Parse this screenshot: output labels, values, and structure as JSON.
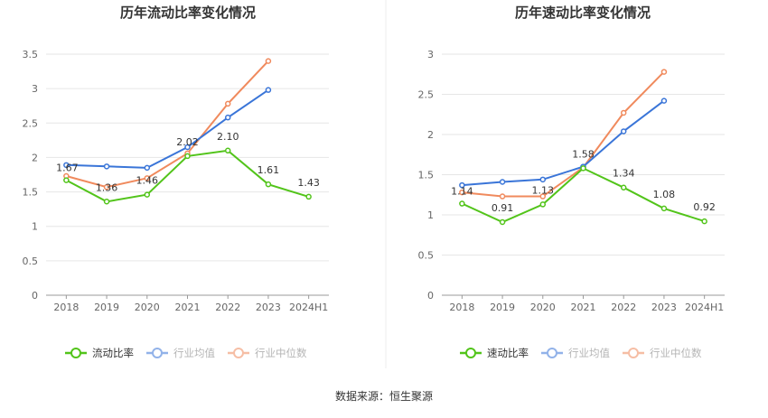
{
  "source_text": "数据来源：恒生聚源",
  "chart_data": [
    {
      "type": "line",
      "title": "历年流动比率变化情况",
      "categories": [
        "2018",
        "2019",
        "2020",
        "2021",
        "2022",
        "2023",
        "2024H1"
      ],
      "ylim": [
        0,
        3.5
      ],
      "yticks": [
        "0",
        "0.5",
        "1",
        "1.5",
        "2",
        "2.5",
        "3",
        "3.5"
      ],
      "grid": true,
      "legend_position": "bottom",
      "series": [
        {
          "name": "流动比率",
          "color": "#52c41a",
          "labeled": true,
          "values": [
            1.67,
            1.36,
            1.46,
            2.02,
            2.1,
            1.61,
            1.43
          ],
          "labels": [
            "1.67",
            "1.36",
            "1.46",
            "2.02",
            "2.10",
            "1.61",
            "1.43"
          ]
        },
        {
          "name": "行业均值",
          "color": "#3a75d8",
          "labeled": false,
          "values": [
            1.89,
            1.87,
            1.85,
            2.15,
            2.58,
            2.98,
            null
          ]
        },
        {
          "name": "行业中位数",
          "color": "#f08a5d",
          "labeled": false,
          "values": [
            1.73,
            1.57,
            1.7,
            2.06,
            2.78,
            3.4,
            null
          ]
        }
      ]
    },
    {
      "type": "line",
      "title": "历年速动比率变化情况",
      "categories": [
        "2018",
        "2019",
        "2020",
        "2021",
        "2022",
        "2023",
        "2024H1"
      ],
      "ylim": [
        0,
        3
      ],
      "yticks": [
        "0",
        "0.5",
        "1",
        "1.5",
        "2",
        "2.5",
        "3"
      ],
      "grid": true,
      "legend_position": "bottom",
      "series": [
        {
          "name": "速动比率",
          "color": "#52c41a",
          "labeled": true,
          "values": [
            1.14,
            0.91,
            1.13,
            1.58,
            1.34,
            1.08,
            0.92
          ],
          "labels": [
            "1.14",
            "0.91",
            "1.13",
            "1.58",
            "1.34",
            "1.08",
            "0.92"
          ]
        },
        {
          "name": "行业均值",
          "color": "#3a75d8",
          "labeled": false,
          "values": [
            1.37,
            1.41,
            1.44,
            1.6,
            2.04,
            2.42,
            null
          ]
        },
        {
          "name": "行业中位数",
          "color": "#f08a5d",
          "labeled": false,
          "values": [
            1.28,
            1.23,
            1.23,
            1.59,
            2.27,
            2.78,
            null
          ]
        }
      ]
    }
  ]
}
